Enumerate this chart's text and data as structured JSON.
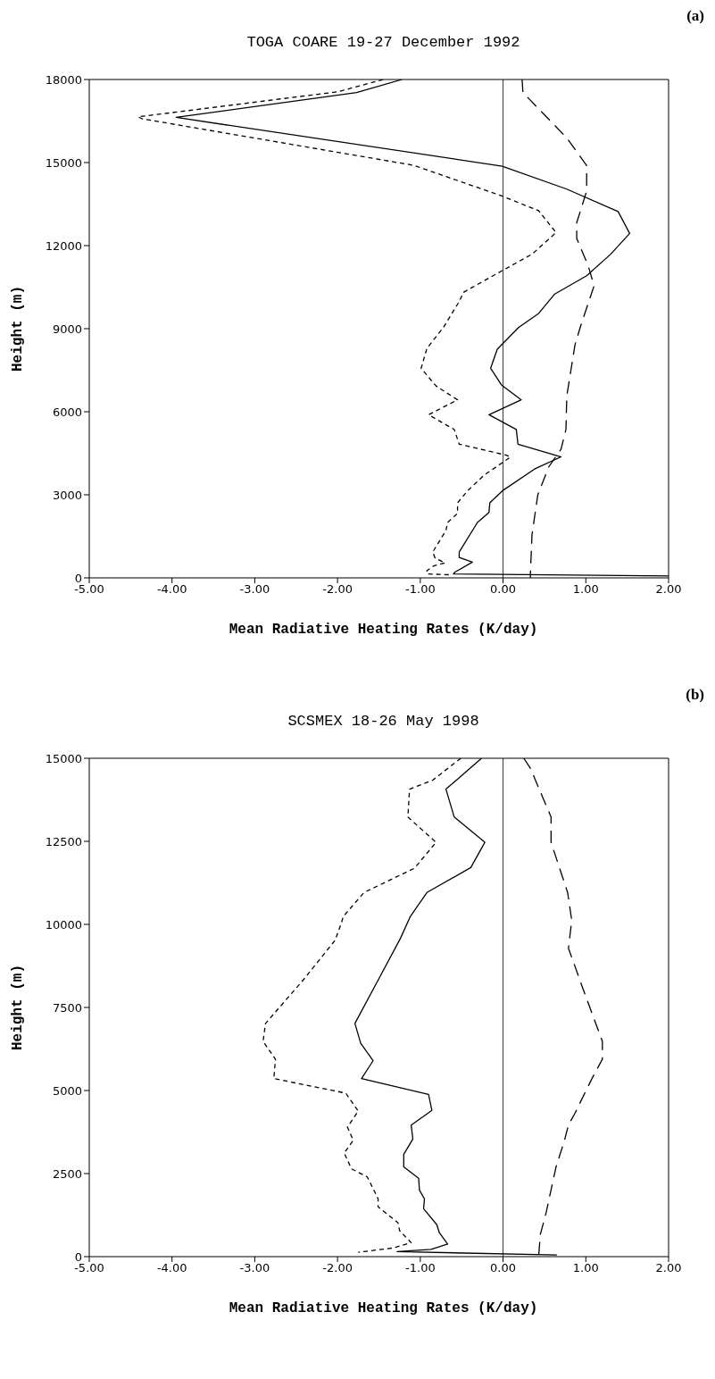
{
  "chart_data": [
    {
      "type": "line",
      "title": "TOGA COARE 19-27 December 1992",
      "xlabel": "Mean Radiative Heating Rates (K/day)",
      "ylabel": "Height (m)",
      "annotations": [
        "(a)"
      ],
      "xlim": [
        -5,
        2
      ],
      "xticks": [
        {
          "value": -5,
          "label": "-5.00"
        },
        {
          "value": -4,
          "label": "-4.00"
        },
        {
          "value": -3,
          "label": "-3.00"
        },
        {
          "value": -2,
          "label": "-2.00"
        },
        {
          "value": -1,
          "label": "-1.00"
        },
        {
          "value": 0,
          "label": "0.00"
        },
        {
          "value": 1,
          "label": "1.00"
        },
        {
          "value": 2,
          "label": "2.00"
        }
      ],
      "ylim": [
        0,
        18000
      ],
      "yticks": [
        0,
        3000,
        6000,
        9000,
        12000,
        15000,
        18000
      ],
      "grid": false,
      "legend": false,
      "marker": "none",
      "ref_lines": [
        {
          "axis": "x",
          "value": 0,
          "color": "#000000"
        }
      ],
      "series": [
        {
          "color": "#000000",
          "line_style": "solid",
          "x": [
            -1.22,
            -1.77,
            -3.95,
            -0.01,
            0.77,
            1.39,
            1.53,
            1.3,
            1.01,
            0.62,
            0.43,
            0.19,
            -0.07,
            -0.15,
            -0.02,
            0.22,
            -0.17,
            0.16,
            0.18,
            0.7,
            0.38,
            -0.01,
            -0.16,
            -0.17,
            -0.31,
            -0.53,
            -0.53,
            -0.37,
            -0.58,
            -0.6,
            2.0
          ],
          "values": [
            18000,
            17530,
            16630,
            14870,
            14040,
            13230,
            12440,
            11690,
            10910,
            10240,
            9550,
            9050,
            8260,
            7570,
            6970,
            6430,
            5890,
            5360,
            4830,
            4370,
            3930,
            3140,
            2710,
            2360,
            2000,
            930,
            740,
            570,
            210,
            140,
            70
          ]
        },
        {
          "color": "#000000",
          "line_style": "dashed",
          "x": [
            -1.45,
            -1.99,
            -4.41,
            -4.36,
            -1.08,
            -0.02,
            0.43,
            0.64,
            0.35,
            -0.02,
            -0.48,
            -0.53,
            -0.72,
            -0.92,
            -0.99,
            -0.81,
            -0.55,
            -0.9,
            -0.59,
            -0.53,
            0.04,
            0.09,
            -0.23,
            -0.43,
            -0.55,
            -0.55,
            -0.67,
            -0.69,
            -0.85,
            -0.82,
            -0.7,
            -0.84,
            -0.92,
            -0.92,
            -0.62
          ],
          "values": [
            18000,
            17560,
            16650,
            16580,
            14900,
            13800,
            13260,
            12470,
            11690,
            11080,
            10310,
            9980,
            9050,
            8290,
            7570,
            6930,
            6430,
            5890,
            5360,
            4830,
            4430,
            4360,
            3710,
            3140,
            2710,
            2330,
            2000,
            1710,
            930,
            710,
            540,
            430,
            260,
            140,
            110
          ]
        },
        {
          "color": "#000000",
          "line_style": "longdash",
          "x": [
            0.23,
            0.24,
            0.77,
            1.01,
            1.01,
            0.89,
            0.89,
            1.03,
            1.1,
            0.94,
            0.87,
            0.77,
            0.76,
            0.7,
            0.55,
            0.42,
            0.35,
            0.33,
            0.33
          ],
          "values": [
            18000,
            17530,
            15890,
            14890,
            13970,
            12830,
            12260,
            11260,
            10550,
            9120,
            8430,
            6570,
            5360,
            4640,
            4000,
            3000,
            1570,
            140,
            0
          ]
        }
      ]
    },
    {
      "type": "line",
      "title": "SCSMEX 18-26 May 1998",
      "xlabel": "Mean Radiative Heating Rates (K/day)",
      "ylabel": "Height (m)",
      "annotations": [
        "(b)"
      ],
      "xlim": [
        -5,
        2
      ],
      "xticks": [
        {
          "value": -5,
          "label": "-5.00"
        },
        {
          "value": -4,
          "label": "-4.00"
        },
        {
          "value": -3,
          "label": "-3.00"
        },
        {
          "value": -2,
          "label": "-2.00"
        },
        {
          "value": -1,
          "label": "-1.00"
        },
        {
          "value": 0,
          "label": "0.00"
        },
        {
          "value": 1,
          "label": "1.00"
        },
        {
          "value": 2,
          "label": "2.00"
        }
      ],
      "ylim": [
        0,
        15000
      ],
      "yticks": [
        0,
        2500,
        5000,
        7500,
        10000,
        12500,
        15000
      ],
      "grid": false,
      "legend": false,
      "marker": "none",
      "ref_lines": [
        {
          "axis": "x",
          "value": 0,
          "color": "#000000"
        }
      ],
      "series": [
        {
          "color": "#000000",
          "line_style": "solid",
          "x": [
            -0.26,
            -0.69,
            -0.59,
            -0.22,
            -0.39,
            -0.92,
            -1.12,
            -1.24,
            -1.48,
            -1.79,
            -1.72,
            -1.57,
            -1.71,
            -0.9,
            -0.86,
            -1.11,
            -1.09,
            -1.2,
            -1.2,
            -1.02,
            -1.01,
            -0.95,
            -0.96,
            -0.8,
            -0.77,
            -0.67,
            -0.87,
            -1.28,
            0.65
          ],
          "values": [
            15000,
            14070,
            13230,
            12470,
            11710,
            10960,
            10240,
            9580,
            8460,
            7020,
            6420,
            5900,
            5360,
            4880,
            4400,
            3960,
            3540,
            3080,
            2700,
            2360,
            2000,
            1740,
            1440,
            960,
            720,
            380,
            220,
            150,
            50
          ]
        },
        {
          "color": "#000000",
          "line_style": "dashed",
          "x": [
            -0.51,
            -0.85,
            -1.13,
            -1.15,
            -0.81,
            -1.07,
            -1.68,
            -1.93,
            -1.96,
            -2.03,
            -2.41,
            -2.87,
            -2.9,
            -2.75,
            -2.77,
            -1.9,
            -1.75,
            -1.88,
            -1.81,
            -1.92,
            -1.83,
            -1.64,
            -1.51,
            -1.51,
            -1.27,
            -1.25,
            -1.11,
            -1.33,
            -1.75
          ],
          "values": [
            15000,
            14340,
            14070,
            13230,
            12470,
            11690,
            10960,
            10240,
            10000,
            9520,
            8340,
            7020,
            6480,
            5940,
            5360,
            4920,
            4380,
            3900,
            3500,
            3120,
            2640,
            2400,
            1740,
            1500,
            1020,
            780,
            420,
            260,
            130
          ]
        },
        {
          "color": "#000000",
          "line_style": "longdash",
          "x": [
            0.25,
            0.33,
            0.58,
            0.58,
            0.78,
            0.83,
            0.79,
            0.86,
            0.96,
            1.2,
            1.2,
            1.07,
            0.87,
            0.79,
            0.74,
            0.64,
            0.52,
            0.45,
            0.43
          ],
          "values": [
            15000,
            14700,
            13230,
            12470,
            10960,
            10120,
            9280,
            8800,
            8100,
            6480,
            5940,
            5340,
            4320,
            3960,
            3480,
            2700,
            1320,
            660,
            0
          ]
        }
      ]
    }
  ]
}
